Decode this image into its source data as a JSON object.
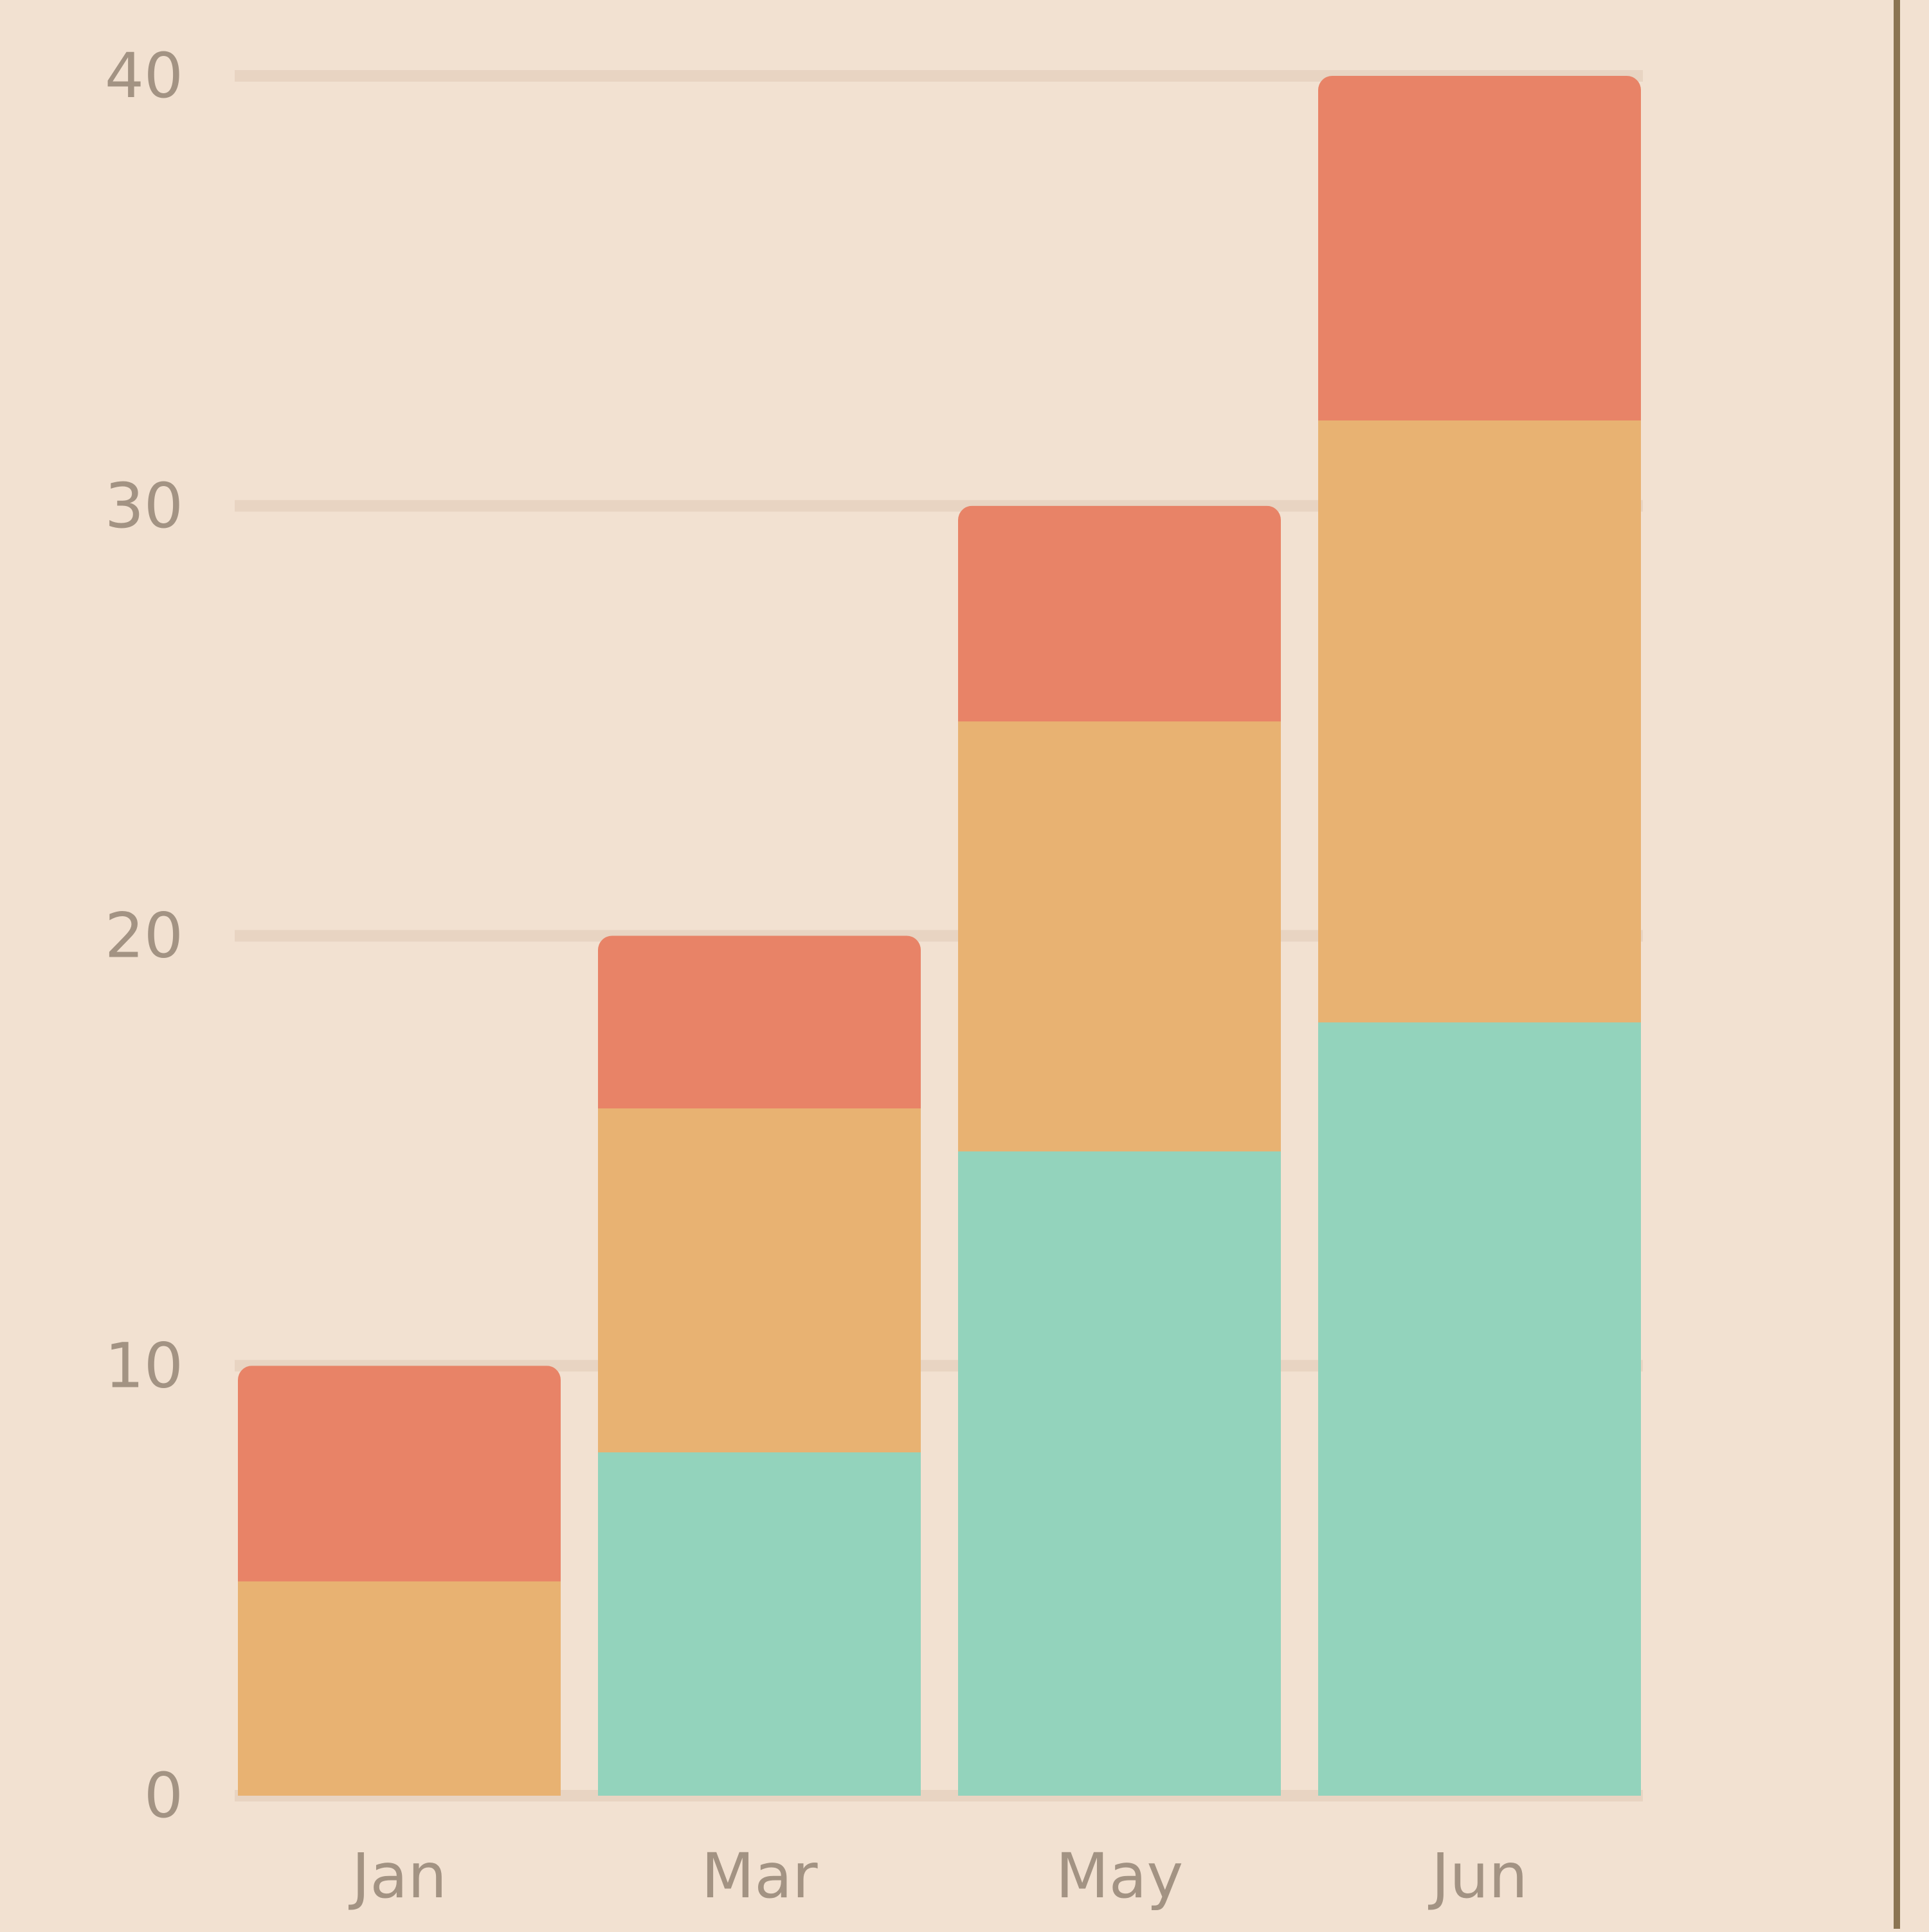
{
  "chart_data": {
    "type": "bar",
    "stacked": true,
    "categories": [
      "Jan",
      "Mar",
      "May",
      "Jun"
    ],
    "series": [
      {
        "values": [
          0,
          8,
          15,
          18
        ],
        "color": "#93d3bc"
      },
      {
        "values": [
          5,
          8,
          10,
          14
        ],
        "color": "#e8b272"
      },
      {
        "values": [
          5,
          4,
          5,
          8
        ],
        "color": "#e88367"
      }
    ],
    "ylim": [
      0,
      40
    ],
    "yticks": [
      0,
      10,
      20,
      30,
      40
    ],
    "grid": true,
    "title": "",
    "xlabel": "",
    "ylabel": ""
  },
  "colors": {
    "background": "#f2e1d1",
    "gridline": "#e8d4c2",
    "tick_text": "#a39383",
    "border": "#8b7452"
  }
}
